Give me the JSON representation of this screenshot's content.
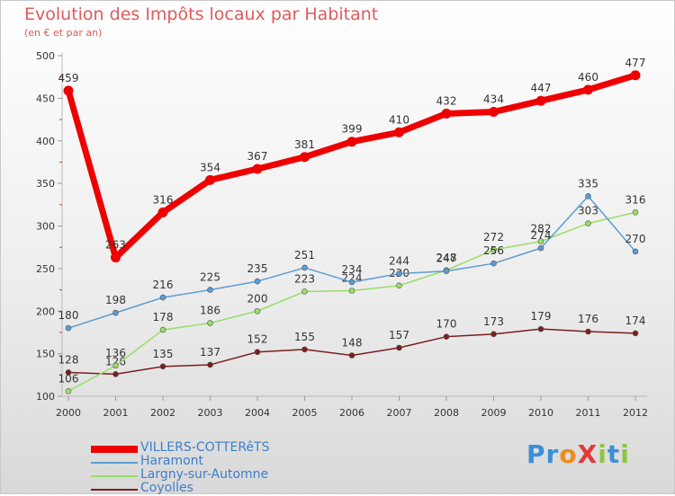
{
  "chart_data": {
    "type": "line",
    "title": "Evolution des Impôts locaux par Habitant",
    "subtitle": "(en € et par an)",
    "xlabel": "",
    "ylabel": "",
    "ylim": [
      100,
      500
    ],
    "yticks": [
      100,
      150,
      200,
      250,
      300,
      350,
      400,
      450,
      500
    ],
    "x": [
      "2000",
      "2001",
      "2002",
      "2003",
      "2004",
      "2005",
      "2006",
      "2007",
      "2008",
      "2009",
      "2010",
      "2011",
      "2012"
    ],
    "series": [
      {
        "name": "Coyolles",
        "color": "#7a1e1e",
        "width": 1.5,
        "values": [
          128,
          126,
          135,
          137,
          152,
          155,
          148,
          157,
          170,
          173,
          179,
          176,
          174
        ]
      },
      {
        "name": "Largny-sur-Automne",
        "color": "#99dd66",
        "width": 1.5,
        "values": [
          106,
          136,
          178,
          186,
          200,
          223,
          224,
          230,
          248,
          272,
          282,
          303,
          316
        ]
      },
      {
        "name": "Haramont",
        "color": "#5b9bd5",
        "width": 1.5,
        "values": [
          180,
          198,
          216,
          225,
          235,
          251,
          234,
          244,
          247,
          256,
          274,
          335,
          270
        ]
      },
      {
        "name": "VILLERS-COTTERêTS",
        "color": "#ee0000",
        "width": 7,
        "values": [
          459,
          263,
          316,
          354,
          367,
          381,
          399,
          410,
          432,
          434,
          447,
          460,
          477
        ]
      }
    ],
    "legend": [
      "VILLERS-COTTERêTS",
      "Haramont",
      "Largny-sur-Automne",
      "Coyolles"
    ],
    "legend_position": "bottom-left",
    "grid": false
  },
  "logo": {
    "text": "ProXiti",
    "letters": [
      {
        "ch": "P",
        "color": "#3b8fd8"
      },
      {
        "ch": "r",
        "color": "#3b8fd8"
      },
      {
        "ch": "o",
        "color": "#f08a1a"
      },
      {
        "ch": "X",
        "color": "#e03a3a"
      },
      {
        "ch": "i",
        "color": "#8cc63e"
      },
      {
        "ch": "t",
        "color": "#3b8fd8"
      },
      {
        "ch": "i",
        "color": "#8cc63e"
      }
    ]
  }
}
